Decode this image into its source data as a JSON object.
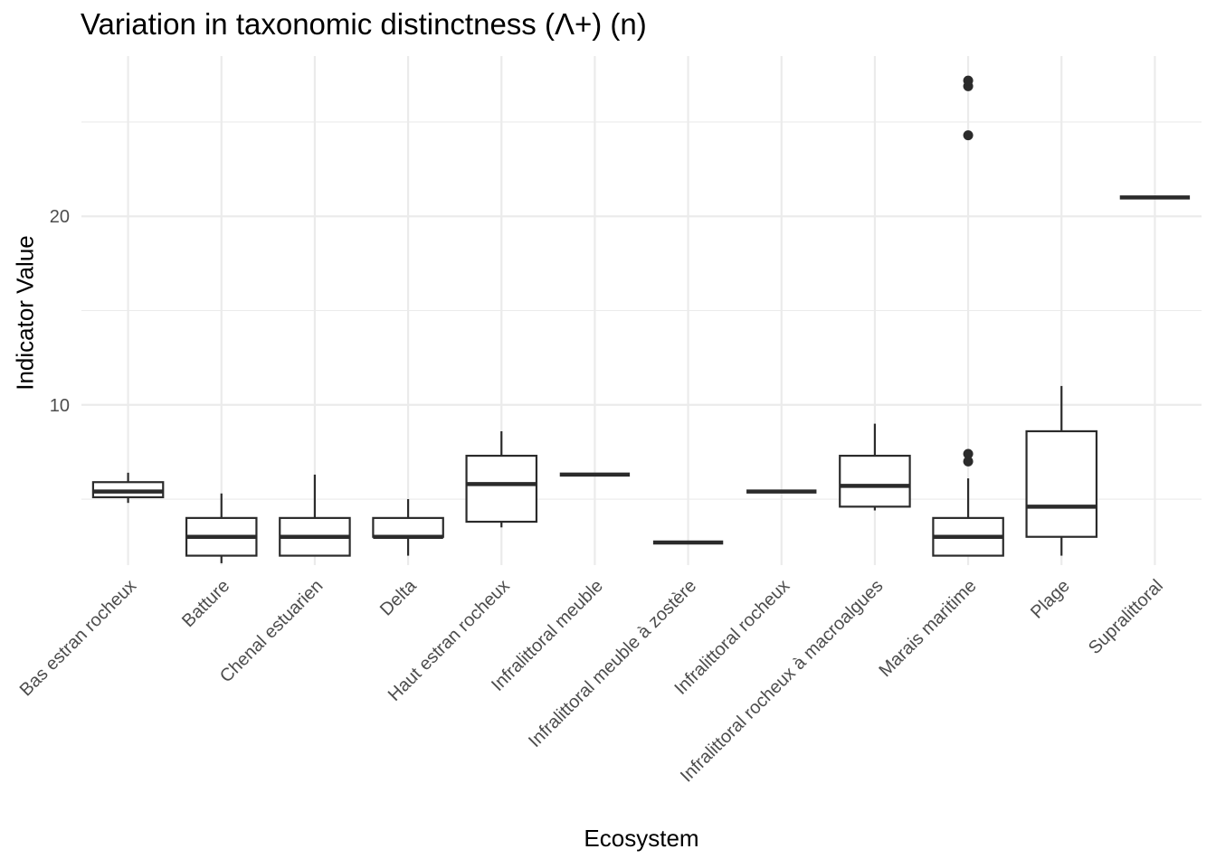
{
  "chart_data": {
    "type": "boxplot",
    "title": "Variation in taxonomic distinctness (Λ+) (n)",
    "xlabel": "Ecosystem",
    "ylabel": "Indicator Value",
    "ylim": [
      1.5,
      28.5
    ],
    "y_ticks": [
      10,
      20
    ],
    "grid": true,
    "categories": [
      "Bas estran rocheux",
      "Batture",
      "Chenal estuarien",
      "Delta",
      "Haut estran rocheux",
      "Infralittoral meuble",
      "Infralittoral meuble à zostère",
      "Infralittoral rocheux",
      "Infralittoral rocheux à macroalgues",
      "Marais maritime",
      "Plage",
      "Supralittoral"
    ],
    "boxes": [
      {
        "whisker_low": 4.8,
        "q1": 5.1,
        "median": 5.4,
        "q3": 5.9,
        "whisker_high": 6.4,
        "outliers": []
      },
      {
        "whisker_low": 1.6,
        "q1": 2.0,
        "median": 3.0,
        "q3": 4.0,
        "whisker_high": 5.3,
        "outliers": []
      },
      {
        "whisker_low": 2.0,
        "q1": 2.0,
        "median": 3.0,
        "q3": 4.0,
        "whisker_high": 6.3,
        "outliers": []
      },
      {
        "whisker_low": 2.0,
        "q1": 3.0,
        "median": 3.0,
        "q3": 4.0,
        "whisker_high": 5.0,
        "outliers": []
      },
      {
        "whisker_low": 3.5,
        "q1": 3.8,
        "median": 5.8,
        "q3": 7.3,
        "whisker_high": 8.6,
        "outliers": []
      },
      {
        "whisker_low": 6.3,
        "q1": 6.3,
        "median": 6.3,
        "q3": 6.3,
        "whisker_high": 6.3,
        "outliers": []
      },
      {
        "whisker_low": 2.7,
        "q1": 2.7,
        "median": 2.7,
        "q3": 2.7,
        "whisker_high": 2.7,
        "outliers": []
      },
      {
        "whisker_low": 5.4,
        "q1": 5.4,
        "median": 5.4,
        "q3": 5.4,
        "whisker_high": 5.4,
        "outliers": []
      },
      {
        "whisker_low": 4.4,
        "q1": 4.6,
        "median": 5.7,
        "q3": 7.3,
        "whisker_high": 9.0,
        "outliers": []
      },
      {
        "whisker_low": 2.0,
        "q1": 2.0,
        "median": 3.0,
        "q3": 4.0,
        "whisker_high": 6.1,
        "outliers": [
          7.0,
          7.4,
          24.3,
          26.9,
          27.2
        ]
      },
      {
        "whisker_low": 2.0,
        "q1": 3.0,
        "median": 4.6,
        "q3": 8.6,
        "whisker_high": 11.0,
        "outliers": []
      },
      {
        "whisker_low": 21.0,
        "q1": 21.0,
        "median": 21.0,
        "q3": 21.0,
        "whisker_high": 21.0,
        "outliers": []
      }
    ],
    "colors": {
      "box_stroke": "#2b2b2b",
      "grid": "#ebebeb",
      "tick_text": "#4d4d4d",
      "background": "#ffffff"
    }
  }
}
